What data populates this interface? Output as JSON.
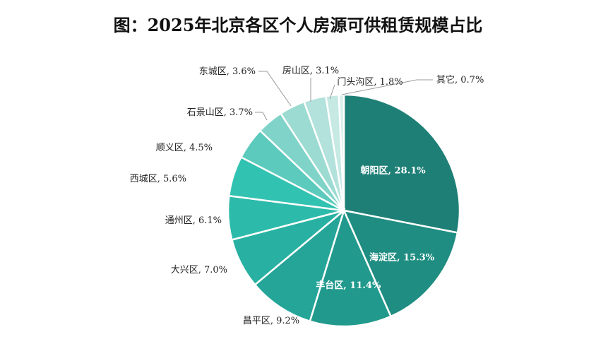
{
  "title": "图：2025年北京各区个人房源可供租赁规模占比",
  "chart_data": {
    "type": "pie",
    "title": "图：2025年北京各区个人房源可供租赁规模占比",
    "start_angle_deg": 0,
    "direction": "clockwise",
    "slices": [
      {
        "label": "朝阳区",
        "value": 28.1,
        "display": "朝阳区, 28.1%",
        "color": "#1e7f76",
        "label_position": "inside"
      },
      {
        "label": "海淀区",
        "value": 15.3,
        "display": "海淀区, 15.3%",
        "color": "#1f8d81",
        "label_position": "inside"
      },
      {
        "label": "丰台区",
        "value": 11.4,
        "display": "丰台区, 11.4%",
        "color": "#219a8d",
        "label_position": "inside"
      },
      {
        "label": "昌平区",
        "value": 9.2,
        "display": "昌平区, 9.2%",
        "color": "#25a598",
        "label_position": "outside"
      },
      {
        "label": "大兴区",
        "value": 7.0,
        "display": "大兴区, 7.0%",
        "color": "#28b1a2",
        "label_position": "outside"
      },
      {
        "label": "通州区",
        "value": 6.1,
        "display": "通州区, 6.1%",
        "color": "#2cbaaa",
        "label_position": "outside"
      },
      {
        "label": "西城区",
        "value": 5.6,
        "display": "西城区, 5.6%",
        "color": "#32c2b1",
        "label_position": "outside"
      },
      {
        "label": "顺义区",
        "value": 4.5,
        "display": "顺义区, 4.5%",
        "color": "#5ccabd",
        "label_position": "outside"
      },
      {
        "label": "石景山区",
        "value": 3.7,
        "display": "石景山区, 3.7%",
        "color": "#80d3c8",
        "label_position": "outside"
      },
      {
        "label": "东城区",
        "value": 3.6,
        "display": "东城区, 3.6%",
        "color": "#9cdbd2",
        "label_position": "outside"
      },
      {
        "label": "房山区",
        "value": 3.1,
        "display": "房山区, 3.1%",
        "color": "#b2e2db",
        "label_position": "outside"
      },
      {
        "label": "门头沟区",
        "value": 1.8,
        "display": "门头沟区, 1.8%",
        "color": "#c6e9e4",
        "label_position": "outside"
      },
      {
        "label": "其它",
        "value": 0.7,
        "display": "其它, 0.7%",
        "color": "#d9f0ec",
        "label_position": "outside"
      }
    ]
  }
}
